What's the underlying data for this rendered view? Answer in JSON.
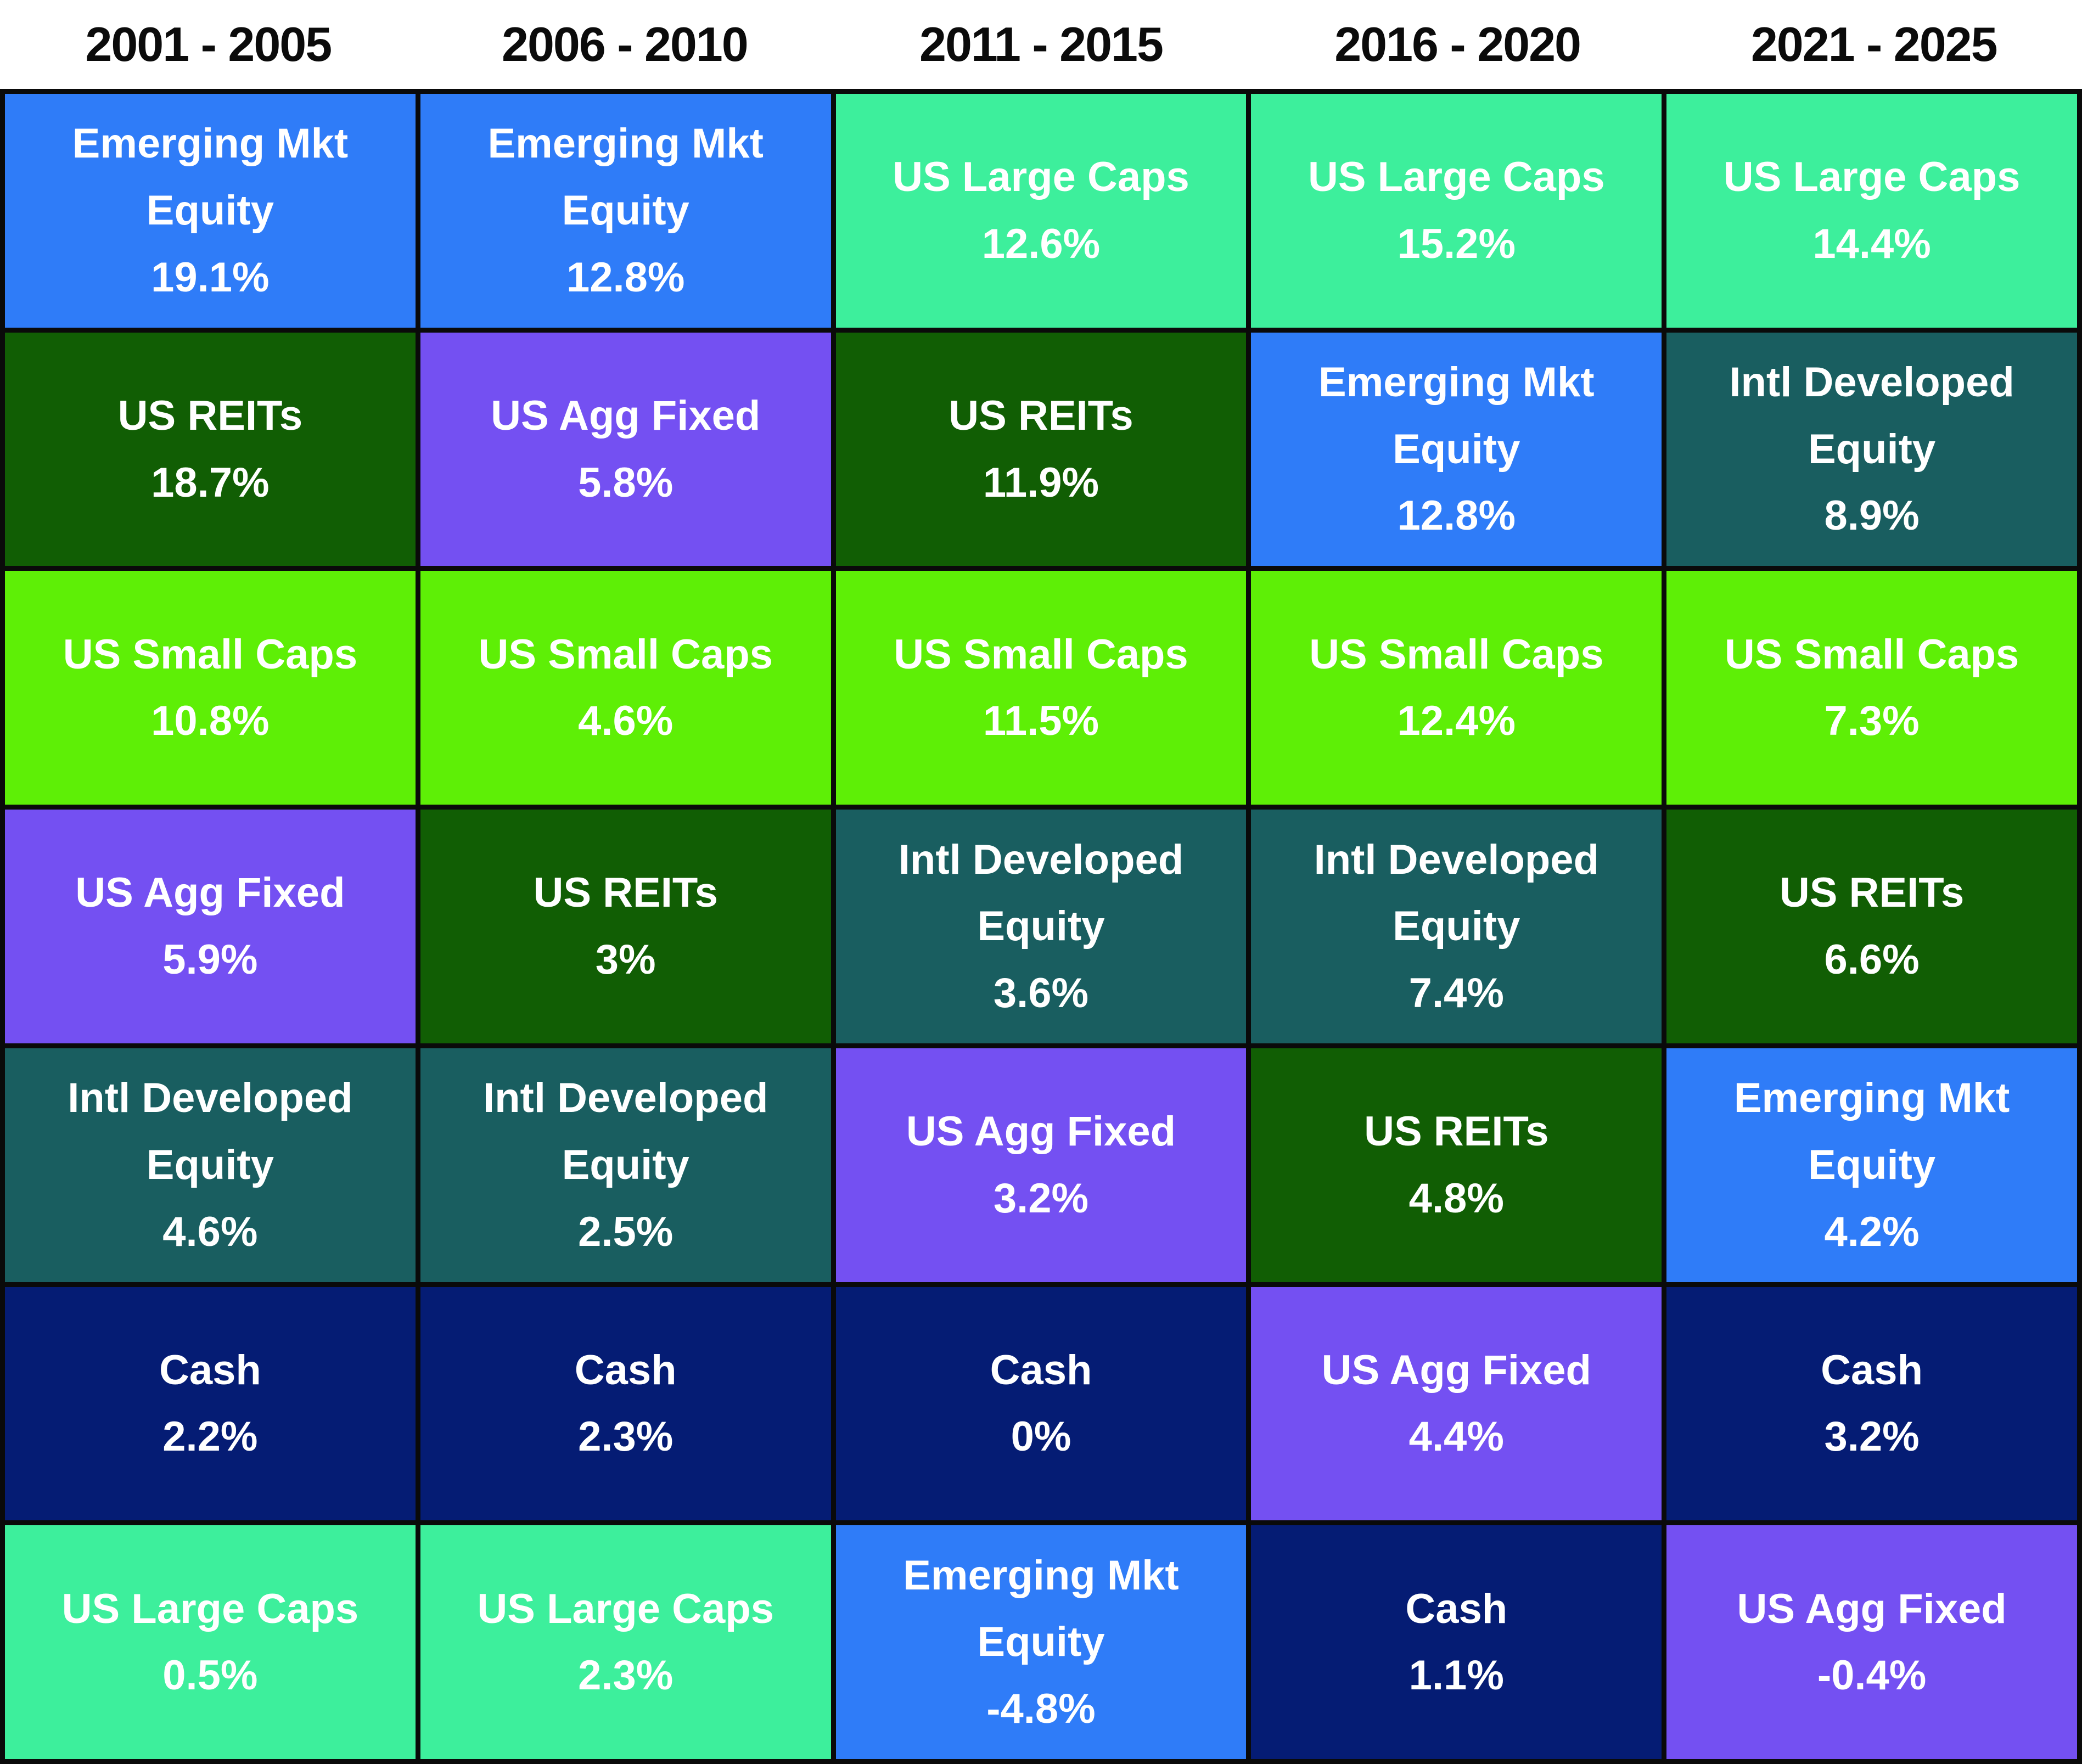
{
  "palette": {
    "emerging": "#2F7CF8",
    "reits": "#115E04",
    "small": "#5EEF06",
    "agg": "#7450F2",
    "intl": "#195E60",
    "cash": "#051C74",
    "large": "#3DEF9C",
    "border": "#0a0a0a",
    "header_text": "#0b0b0b",
    "cell_text": "#ffffff"
  },
  "columns": [
    {
      "period": "2001 - 2005",
      "cells": [
        {
          "asset_key": "emerging",
          "line1": "Emerging Mkt",
          "line2": "Equity",
          "value": "19.1%"
        },
        {
          "asset_key": "reits",
          "line1": "US REITs",
          "value": "18.7%"
        },
        {
          "asset_key": "small",
          "line1": "US Small Caps",
          "value": "10.8%"
        },
        {
          "asset_key": "agg",
          "line1": "US Agg Fixed",
          "value": "5.9%"
        },
        {
          "asset_key": "intl",
          "line1": "Intl Developed",
          "line2": "Equity",
          "value": "4.6%"
        },
        {
          "asset_key": "cash",
          "line1": "Cash",
          "value": "2.2%"
        },
        {
          "asset_key": "large",
          "line1": "US Large Caps",
          "value": "0.5%"
        }
      ]
    },
    {
      "period": "2006 - 2010",
      "cells": [
        {
          "asset_key": "emerging",
          "line1": "Emerging Mkt",
          "line2": "Equity",
          "value": "12.8%"
        },
        {
          "asset_key": "agg",
          "line1": "US Agg Fixed",
          "value": "5.8%"
        },
        {
          "asset_key": "small",
          "line1": "US Small Caps",
          "value": "4.6%"
        },
        {
          "asset_key": "reits",
          "line1": "US REITs",
          "value": "3%"
        },
        {
          "asset_key": "intl",
          "line1": "Intl Developed",
          "line2": "Equity",
          "value": "2.5%"
        },
        {
          "asset_key": "cash",
          "line1": "Cash",
          "value": "2.3%"
        },
        {
          "asset_key": "large",
          "line1": "US Large Caps",
          "value": "2.3%"
        }
      ]
    },
    {
      "period": "2011 - 2015",
      "cells": [
        {
          "asset_key": "large",
          "line1": "US Large Caps",
          "value": "12.6%"
        },
        {
          "asset_key": "reits",
          "line1": "US REITs",
          "value": "11.9%"
        },
        {
          "asset_key": "small",
          "line1": "US Small Caps",
          "value": "11.5%"
        },
        {
          "asset_key": "intl",
          "line1": "Intl Developed",
          "line2": "Equity",
          "value": "3.6%"
        },
        {
          "asset_key": "agg",
          "line1": "US Agg Fixed",
          "value": "3.2%"
        },
        {
          "asset_key": "cash",
          "line1": "Cash",
          "value": "0%"
        },
        {
          "asset_key": "emerging",
          "line1": "Emerging Mkt",
          "line2": "Equity",
          "value": "-4.8%"
        }
      ]
    },
    {
      "period": "2016 - 2020",
      "cells": [
        {
          "asset_key": "large",
          "line1": "US Large Caps",
          "value": "15.2%"
        },
        {
          "asset_key": "emerging",
          "line1": "Emerging Mkt",
          "line2": "Equity",
          "value": "12.8%"
        },
        {
          "asset_key": "small",
          "line1": "US Small Caps",
          "value": "12.4%"
        },
        {
          "asset_key": "intl",
          "line1": "Intl Developed",
          "line2": "Equity",
          "value": "7.4%"
        },
        {
          "asset_key": "reits",
          "line1": "US REITs",
          "value": "4.8%"
        },
        {
          "asset_key": "agg",
          "line1": "US Agg Fixed",
          "value": "4.4%"
        },
        {
          "asset_key": "cash",
          "line1": "Cash",
          "value": "1.1%"
        }
      ]
    },
    {
      "period": "2021 - 2025",
      "cells": [
        {
          "asset_key": "large",
          "line1": "US Large Caps",
          "value": "14.4%"
        },
        {
          "asset_key": "intl",
          "line1": "Intl Developed",
          "line2": "Equity",
          "value": "8.9%"
        },
        {
          "asset_key": "small",
          "line1": "US Small Caps",
          "value": "7.3%"
        },
        {
          "asset_key": "reits",
          "line1": "US REITs",
          "value": "6.6%"
        },
        {
          "asset_key": "emerging",
          "line1": "Emerging Mkt",
          "line2": "Equity",
          "value": "4.2%"
        },
        {
          "asset_key": "cash",
          "line1": "Cash",
          "value": "3.2%"
        },
        {
          "asset_key": "agg",
          "line1": "US Agg Fixed",
          "value": "-0.4%"
        }
      ]
    }
  ],
  "chart_data": {
    "type": "table",
    "title": "",
    "columns": [
      "2001 - 2005",
      "2006 - 2010",
      "2011 - 2015",
      "2016 - 2020",
      "2021 - 2025"
    ],
    "assets": [
      {
        "name": "Emerging Mkt Equity",
        "color": "#2F7CF8"
      },
      {
        "name": "US REITs",
        "color": "#115E04"
      },
      {
        "name": "US Small Caps",
        "color": "#5EEF06"
      },
      {
        "name": "US Agg Fixed",
        "color": "#7450F2"
      },
      {
        "name": "Intl Developed Equity",
        "color": "#195E60"
      },
      {
        "name": "Cash",
        "color": "#051C74"
      },
      {
        "name": "US Large Caps",
        "color": "#3DEF9C"
      }
    ],
    "ranked_returns": {
      "2001 - 2005": [
        {
          "asset": "Emerging Mkt Equity",
          "return_pct": 19.1
        },
        {
          "asset": "US REITs",
          "return_pct": 18.7
        },
        {
          "asset": "US Small Caps",
          "return_pct": 10.8
        },
        {
          "asset": "US Agg Fixed",
          "return_pct": 5.9
        },
        {
          "asset": "Intl Developed Equity",
          "return_pct": 4.6
        },
        {
          "asset": "Cash",
          "return_pct": 2.2
        },
        {
          "asset": "US Large Caps",
          "return_pct": 0.5
        }
      ],
      "2006 - 2010": [
        {
          "asset": "Emerging Mkt Equity",
          "return_pct": 12.8
        },
        {
          "asset": "US Agg Fixed",
          "return_pct": 5.8
        },
        {
          "asset": "US Small Caps",
          "return_pct": 4.6
        },
        {
          "asset": "US REITs",
          "return_pct": 3
        },
        {
          "asset": "Intl Developed Equity",
          "return_pct": 2.5
        },
        {
          "asset": "Cash",
          "return_pct": 2.3
        },
        {
          "asset": "US Large Caps",
          "return_pct": 2.3
        }
      ],
      "2011 - 2015": [
        {
          "asset": "US Large Caps",
          "return_pct": 12.6
        },
        {
          "asset": "US REITs",
          "return_pct": 11.9
        },
        {
          "asset": "US Small Caps",
          "return_pct": 11.5
        },
        {
          "asset": "Intl Developed Equity",
          "return_pct": 3.6
        },
        {
          "asset": "US Agg Fixed",
          "return_pct": 3.2
        },
        {
          "asset": "Cash",
          "return_pct": 0
        },
        {
          "asset": "Emerging Mkt Equity",
          "return_pct": -4.8
        }
      ],
      "2016 - 2020": [
        {
          "asset": "US Large Caps",
          "return_pct": 15.2
        },
        {
          "asset": "Emerging Mkt Equity",
          "return_pct": 12.8
        },
        {
          "asset": "US Small Caps",
          "return_pct": 12.4
        },
        {
          "asset": "Intl Developed Equity",
          "return_pct": 7.4
        },
        {
          "asset": "US REITs",
          "return_pct": 4.8
        },
        {
          "asset": "US Agg Fixed",
          "return_pct": 4.4
        },
        {
          "asset": "Cash",
          "return_pct": 1.1
        }
      ],
      "2021 - 2025": [
        {
          "asset": "US Large Caps",
          "return_pct": 14.4
        },
        {
          "asset": "Intl Developed Equity",
          "return_pct": 8.9
        },
        {
          "asset": "US Small Caps",
          "return_pct": 7.3
        },
        {
          "asset": "US REITs",
          "return_pct": 6.6
        },
        {
          "asset": "Emerging Mkt Equity",
          "return_pct": 4.2
        },
        {
          "asset": "Cash",
          "return_pct": 3.2
        },
        {
          "asset": "US Agg Fixed",
          "return_pct": -0.4
        }
      ]
    },
    "layout": {
      "grid": true,
      "legend_position": "none",
      "columns_count": 5,
      "rows_per_column": 7
    }
  }
}
